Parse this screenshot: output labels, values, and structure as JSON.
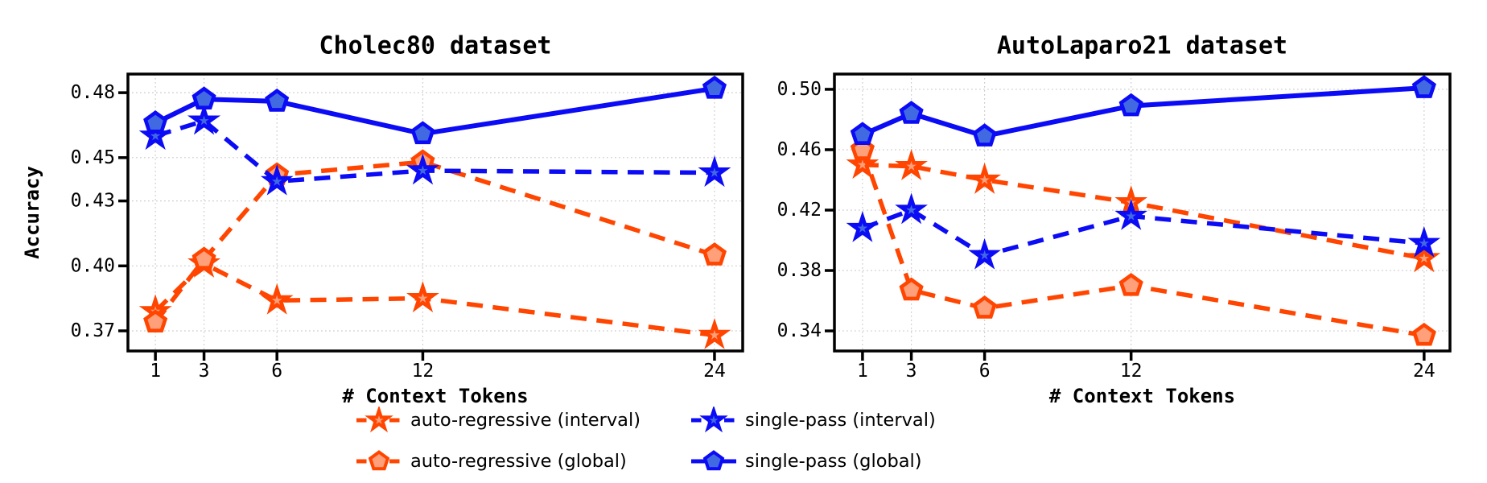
{
  "figure": {
    "background": "#ffffff",
    "panel_count": 2
  },
  "colors": {
    "orange_line": "#FF4500",
    "orange_marker_fill": "#FFA07A",
    "blue_line": "#0B0BF5",
    "blue_marker_fill": "#4169E1",
    "grid": "#CCCCCC",
    "text": "#000000",
    "spine": "#000000"
  },
  "legend": {
    "position": "lower center",
    "items": [
      {
        "id": "ar-interval",
        "label": "auto-regressive (interval)",
        "color": "#FF4500",
        "marker_fill": "#FFA07A",
        "marker": "star",
        "line": "dashed"
      },
      {
        "id": "ar-global",
        "label": "auto-regressive (global)",
        "color": "#FF4500",
        "marker_fill": "#FFA07A",
        "marker": "pentagon",
        "line": "dashed"
      },
      {
        "id": "sp-interval",
        "label": "single-pass (interval)",
        "color": "#0B0BF5",
        "marker_fill": "#4169E1",
        "marker": "star",
        "line": "dashed"
      },
      {
        "id": "sp-global",
        "label": "single-pass (global)",
        "color": "#0B0BF5",
        "marker_fill": "#4169E1",
        "marker": "pentagon",
        "line": "solid"
      }
    ]
  },
  "chart_data": [
    {
      "type": "line",
      "title": "Cholec80 dataset",
      "xlabel": "# Context Tokens",
      "ylabel": "Accuracy",
      "x": [
        1,
        3,
        6,
        12,
        24
      ],
      "xtick_labels": [
        "1",
        "3",
        "6",
        "12",
        "24"
      ],
      "yticks": [
        0.37,
        0.4,
        0.43,
        0.45,
        0.48
      ],
      "ytick_labels": [
        "0.37",
        "0.40",
        "0.43",
        "0.45",
        "0.48"
      ],
      "xlim": [
        -0.13,
        25.16
      ],
      "ylim": [
        0.3607,
        0.4886
      ],
      "grid": true,
      "series": [
        {
          "name": "auto-regressive (interval)",
          "marker": "star",
          "line": "dashed",
          "color": "#FF4500",
          "marker_fill": "#FFA07A",
          "values": [
            0.379,
            0.401,
            0.384,
            0.385,
            0.368
          ]
        },
        {
          "name": "auto-regressive (global)",
          "marker": "pentagon",
          "line": "dashed",
          "color": "#FF4500",
          "marker_fill": "#FFA07A",
          "values": [
            0.374,
            0.403,
            0.442,
            0.448,
            0.405
          ]
        },
        {
          "name": "single-pass (interval)",
          "marker": "star",
          "line": "dashed",
          "color": "#0B0BF5",
          "marker_fill": "#4169E1",
          "values": [
            0.46,
            0.467,
            0.439,
            0.444,
            0.443
          ]
        },
        {
          "name": "single-pass (global)",
          "marker": "pentagon",
          "line": "solid",
          "color": "#0B0BF5",
          "marker_fill": "#4169E1",
          "values": [
            0.466,
            0.477,
            0.476,
            0.461,
            0.482
          ]
        }
      ]
    },
    {
      "type": "line",
      "title": "AutoLaparo21 dataset",
      "xlabel": "# Context Tokens",
      "ylabel": "",
      "x": [
        1,
        3,
        6,
        12,
        24
      ],
      "xtick_labels": [
        "1",
        "3",
        "6",
        "12",
        "24"
      ],
      "yticks": [
        0.34,
        0.38,
        0.42,
        0.46,
        0.5
      ],
      "ytick_labels": [
        "0.34",
        "0.38",
        "0.42",
        "0.46",
        "0.50"
      ],
      "xlim": [
        -0.15,
        25.06
      ],
      "ylim": [
        0.3267,
        0.5101
      ],
      "grid": true,
      "series": [
        {
          "name": "auto-regressive (interval)",
          "marker": "star",
          "line": "dashed",
          "color": "#FF4500",
          "marker_fill": "#FFA07A",
          "values": [
            0.45,
            0.449,
            0.44,
            0.425,
            0.388
          ]
        },
        {
          "name": "auto-regressive (global)",
          "marker": "pentagon",
          "line": "dashed",
          "color": "#FF4500",
          "marker_fill": "#FFA07A",
          "values": [
            0.46,
            0.367,
            0.355,
            0.37,
            0.337
          ]
        },
        {
          "name": "single-pass (interval)",
          "marker": "star",
          "line": "dashed",
          "color": "#0B0BF5",
          "marker_fill": "#4169E1",
          "values": [
            0.408,
            0.42,
            0.39,
            0.416,
            0.398
          ]
        },
        {
          "name": "single-pass (global)",
          "marker": "pentagon",
          "line": "solid",
          "color": "#0B0BF5",
          "marker_fill": "#4169E1",
          "values": [
            0.47,
            0.484,
            0.469,
            0.489,
            0.501
          ]
        }
      ]
    }
  ]
}
